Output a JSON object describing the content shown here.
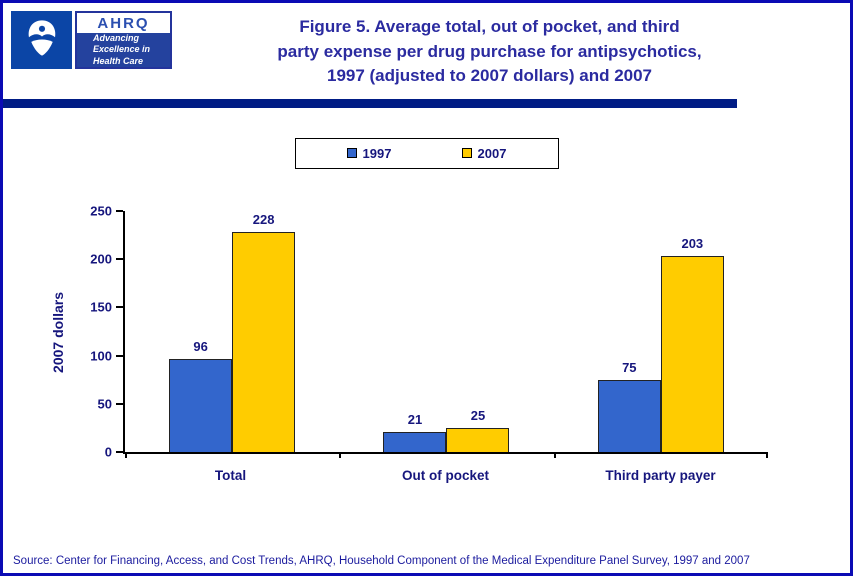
{
  "colors": {
    "border_blue": "#0b0bb4",
    "rule_navy": "#001c85",
    "title_blue": "#2b2ba0",
    "navy_text": "#16167d",
    "series_1997": "#3366cc",
    "series_2007": "#ffcc00"
  },
  "header": {
    "title_lines": [
      "Figure 5. Average total, out of pocket, and third",
      "party expense per drug purchase for antipsychotics,",
      "1997 (adjusted to 2007 dollars) and 2007"
    ],
    "logos": {
      "ahrq_acronym": "AHRQ",
      "ahrq_tagline_lines": [
        "Advancing",
        "Excellence in",
        "Health Care"
      ]
    }
  },
  "legend": {
    "items": [
      {
        "label": "1997",
        "color": "#3366cc"
      },
      {
        "label": "2007",
        "color": "#ffcc00"
      }
    ]
  },
  "chart_data": {
    "type": "bar",
    "title": "Figure 5. Average total, out of pocket, and third party expense per drug purchase for antipsychotics, 1997 (adjusted to 2007 dollars) and 2007",
    "categories": [
      "Total",
      "Out of pocket",
      "Third party payer"
    ],
    "series": [
      {
        "name": "1997",
        "color": "#3366cc",
        "values": [
          96,
          21,
          75
        ]
      },
      {
        "name": "2007",
        "color": "#ffcc00",
        "values": [
          228,
          25,
          203
        ]
      }
    ],
    "xlabel": "",
    "ylabel": "2007 dollars",
    "ylim": [
      0,
      250
    ],
    "yticks": [
      0,
      50,
      100,
      150,
      200,
      250
    ],
    "grid": false,
    "legend_position": "top-center",
    "data_labels": true
  },
  "footer": {
    "source": "Source: Center for Financing, Access, and Cost Trends, AHRQ, Household Component of the Medical Expenditure Panel Survey, 1997 and 2007"
  }
}
